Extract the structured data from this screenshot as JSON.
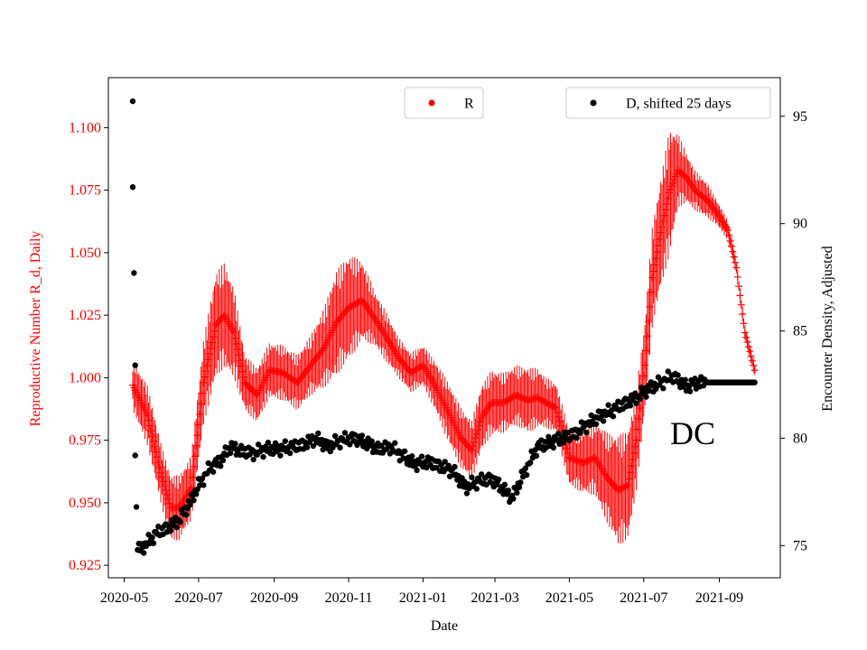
{
  "chart_data": {
    "type": "scatter",
    "title": "",
    "xlabel": "Date",
    "ylabel_left": "Reproductive Number R_d, Daily",
    "ylabel_right": "Encounter Density, Adjusted",
    "annotation": "DC",
    "x_ticks": [
      "2020-05",
      "2020-07",
      "2020-09",
      "2020-11",
      "2021-01",
      "2021-03",
      "2021-05",
      "2021-07",
      "2021-09"
    ],
    "x_range": [
      "2020-04-18",
      "2021-10-21"
    ],
    "ylim_left": [
      0.92,
      1.12
    ],
    "yticks_left": [
      "0.925",
      "0.950",
      "0.975",
      "1.000",
      "1.025",
      "1.050",
      "1.075",
      "1.100"
    ],
    "ylim_right": [
      73.5,
      96.8
    ],
    "yticks_right": [
      "75",
      "80",
      "85",
      "90",
      "95"
    ],
    "legend": [
      {
        "label": "R",
        "color": "#ff0000",
        "position": "top-center"
      },
      {
        "label": "D, shifted 25 days",
        "color": "#000000",
        "position": "top-right"
      }
    ],
    "series": [
      {
        "name": "R",
        "axis": "left",
        "color": "#ff0000",
        "marker": "plus with vertical error bars",
        "x": [
          "2020-05-08",
          "2020-05-20",
          "2020-05-31",
          "2020-06-08",
          "2020-06-15",
          "2020-06-25",
          "2020-07-05",
          "2020-07-15",
          "2020-07-22",
          "2020-07-30",
          "2020-08-08",
          "2020-08-18",
          "2020-08-28",
          "2020-09-08",
          "2020-09-20",
          "2020-10-01",
          "2020-10-12",
          "2020-10-22",
          "2020-11-01",
          "2020-11-12",
          "2020-11-22",
          "2020-12-01",
          "2020-12-12",
          "2020-12-22",
          "2021-01-01",
          "2021-01-12",
          "2021-01-22",
          "2021-02-01",
          "2021-02-10",
          "2021-02-18",
          "2021-02-26",
          "2021-03-08",
          "2021-03-18",
          "2021-03-28",
          "2021-04-05",
          "2021-04-12",
          "2021-04-20",
          "2021-05-01",
          "2021-05-12",
          "2021-05-22",
          "2021-06-01",
          "2021-06-10",
          "2021-06-18",
          "2021-06-25",
          "2021-07-02",
          "2021-07-08",
          "2021-07-15",
          "2021-07-22",
          "2021-07-29",
          "2021-08-05",
          "2021-08-12",
          "2021-08-22",
          "2021-08-30",
          "2021-09-08",
          "2021-09-15",
          "2021-09-22",
          "2021-09-30"
        ],
        "values": [
          0.997,
          0.985,
          0.962,
          0.948,
          0.948,
          0.956,
          0.998,
          1.021,
          1.025,
          1.018,
          0.998,
          0.993,
          1.003,
          1.002,
          0.998,
          1.005,
          1.012,
          1.022,
          1.028,
          1.031,
          1.024,
          1.017,
          1.008,
          1.002,
          1.005,
          0.996,
          0.986,
          0.976,
          0.971,
          0.984,
          0.99,
          0.99,
          0.993,
          0.991,
          0.992,
          0.99,
          0.988,
          0.968,
          0.966,
          0.968,
          0.96,
          0.955,
          0.957,
          0.975,
          1.005,
          1.04,
          1.058,
          1.074,
          1.083,
          1.08,
          1.075,
          1.071,
          1.066,
          1.059,
          1.044,
          1.018,
          1.003
        ],
        "errors": [
          0.01,
          0.012,
          0.012,
          0.013,
          0.013,
          0.013,
          0.017,
          0.021,
          0.021,
          0.018,
          0.011,
          0.011,
          0.011,
          0.011,
          0.011,
          0.012,
          0.016,
          0.021,
          0.021,
          0.016,
          0.011,
          0.01,
          0.008,
          0.008,
          0.008,
          0.01,
          0.012,
          0.012,
          0.012,
          0.013,
          0.013,
          0.012,
          0.012,
          0.013,
          0.012,
          0.01,
          0.01,
          0.011,
          0.012,
          0.015,
          0.018,
          0.022,
          0.022,
          0.02,
          0.018,
          0.02,
          0.022,
          0.025,
          0.015,
          0.01,
          0.008,
          0.007,
          0.005,
          0.004,
          0.003,
          0.003,
          0.003
        ]
      },
      {
        "name": "D, shifted 25 days",
        "axis": "right",
        "color": "#000000",
        "marker": "dot",
        "outliers": {
          "x": [
            "2020-05-08",
            "2020-05-08",
            "2020-05-09",
            "2020-05-10",
            "2020-05-10",
            "2020-05-11"
          ],
          "values": [
            95.7,
            91.7,
            87.7,
            83.4,
            79.2,
            76.8
          ]
        },
        "x": [
          "2020-05-12",
          "2020-05-18",
          "2020-05-28",
          "2020-06-05",
          "2020-06-15",
          "2020-06-22",
          "2020-07-01",
          "2020-07-10",
          "2020-07-20",
          "2020-07-26",
          "2020-08-05",
          "2020-08-15",
          "2020-08-25",
          "2020-09-05",
          "2020-09-15",
          "2020-09-25",
          "2020-10-05",
          "2020-10-15",
          "2020-10-25",
          "2020-11-05",
          "2020-11-15",
          "2020-11-25",
          "2020-12-05",
          "2020-12-15",
          "2020-12-25",
          "2021-01-05",
          "2021-01-15",
          "2021-01-25",
          "2021-02-05",
          "2021-02-15",
          "2021-02-25",
          "2021-03-05",
          "2021-03-15",
          "2021-03-25",
          "2021-04-05",
          "2021-04-15",
          "2021-04-25",
          "2021-05-05",
          "2021-05-15",
          "2021-05-25",
          "2021-06-05",
          "2021-06-15",
          "2021-06-25",
          "2021-07-05",
          "2021-07-15",
          "2021-07-25",
          "2021-08-05",
          "2021-08-15",
          "2021-08-25",
          "2021-09-05",
          "2021-09-15",
          "2021-09-25",
          "2021-09-30"
        ],
        "values": [
          74.8,
          75.0,
          75.6,
          75.8,
          76.2,
          76.8,
          77.8,
          78.6,
          79.0,
          79.6,
          79.4,
          79.3,
          79.5,
          79.5,
          79.6,
          79.7,
          80.0,
          79.6,
          79.9,
          80.0,
          79.8,
          79.5,
          79.6,
          79.2,
          78.8,
          78.9,
          78.7,
          78.5,
          77.7,
          78.0,
          78.1,
          77.8,
          77.2,
          78.4,
          79.6,
          79.8,
          80.0,
          80.2,
          80.6,
          81.0,
          81.3,
          81.6,
          81.9,
          82.3,
          82.6,
          82.9,
          82.4,
          82.6,
          82.6,
          82.6,
          82.6,
          82.6,
          82.6
        ]
      }
    ]
  }
}
